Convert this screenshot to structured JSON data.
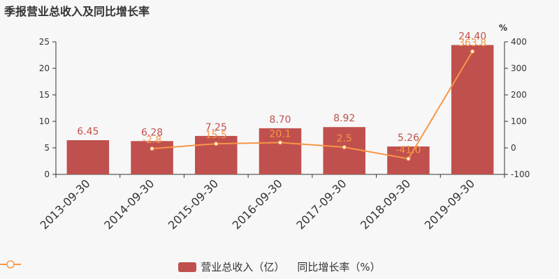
{
  "title": "季报营业总收入及同比增长率",
  "colors": {
    "bar": "#c0504d",
    "line": "#f79646",
    "axis": "#333333",
    "label_bar": "#c0504d",
    "label_line": "#f79646"
  },
  "legend": {
    "bar_label": "营业总收入（亿）",
    "line_label": "同比增长率（%）"
  },
  "chart_data": {
    "type": "bar",
    "categories": [
      "2013-09-30",
      "2014-09-30",
      "2015-09-30",
      "2016-09-30",
      "2017-09-30",
      "2018-09-30",
      "2019-09-30"
    ],
    "series": [
      {
        "name": "营业总收入（亿）",
        "type": "bar",
        "axis": "left",
        "values": [
          6.45,
          6.28,
          7.25,
          8.7,
          8.92,
          5.26,
          24.4
        ],
        "labels": [
          "6.45",
          "6.28",
          "7.25",
          "8.70",
          "8.92",
          "5.26",
          "24.40"
        ]
      },
      {
        "name": "同比增长率（%）",
        "type": "line",
        "axis": "right",
        "values": [
          null,
          -2.8,
          15.5,
          20.1,
          2.5,
          -41.0,
          363.8
        ],
        "labels": [
          "",
          "-2.8",
          "15.5",
          "20.1",
          "2.5",
          "-41.0",
          "363.8"
        ]
      }
    ],
    "y_left": {
      "lim": [
        0,
        25
      ],
      "ticks": [
        "0",
        "5",
        "10",
        "15",
        "20",
        "25"
      ]
    },
    "y_right": {
      "lim": [
        -100,
        400
      ],
      "ticks": [
        "-100",
        "0",
        "100",
        "200",
        "300",
        "400"
      ],
      "unit": "%"
    },
    "grid": false,
    "legend_position": "bottom"
  }
}
